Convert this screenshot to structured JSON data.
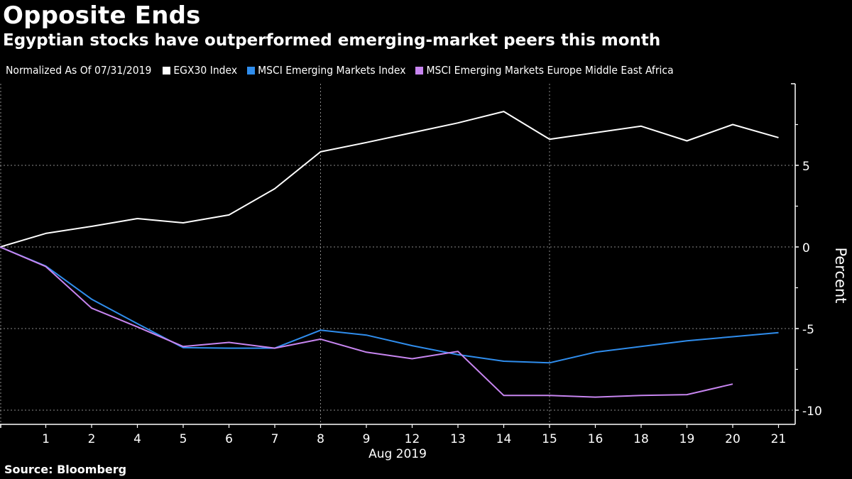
{
  "header": {
    "title": "Opposite Ends",
    "subtitle": "Egyptian stocks have outperformed emerging-market peers this month"
  },
  "legend": {
    "note": "Normalized As Of 07/31/2019",
    "items": [
      {
        "label": "EGX30 Index",
        "color": "#ffffff"
      },
      {
        "label": "MSCI Emerging Markets Index",
        "color": "#2f8ded"
      },
      {
        "label": "MSCI Emerging Markets Europe Middle East Africa",
        "color": "#c785f0"
      }
    ]
  },
  "footer": {
    "source": "Source: Bloomberg"
  },
  "chart_data": {
    "type": "line",
    "title": "Opposite Ends",
    "subtitle": "Egyptian stocks have outperformed emerging-market peers this month",
    "xlabel": "Aug 2019",
    "ylabel": "Percent",
    "x": [
      "Jul 31",
      "1",
      "2",
      "4",
      "5",
      "6",
      "7",
      "8",
      "9",
      "12",
      "13",
      "14",
      "15",
      "16",
      "18",
      "19",
      "20",
      "21"
    ],
    "x_tick_labels": [
      "1",
      "2",
      "4",
      "5",
      "6",
      "7",
      "8",
      "9",
      "12",
      "13",
      "14",
      "15",
      "16",
      "18",
      "19",
      "20",
      "21"
    ],
    "ylim": [
      -10.87,
      10
    ],
    "y_ticks": [
      5,
      0,
      -5,
      -10
    ],
    "y_minor_ticks": [
      7.5,
      2.5,
      -2.5,
      -7.5
    ],
    "y_axis_side": "right",
    "grid": true,
    "vertical_gridlines_at": [
      "Jul 31",
      "8",
      "15"
    ],
    "legend_position": "top-left",
    "series": [
      {
        "name": "EGX30 Index",
        "color": "#ffffff",
        "values": [
          0,
          0.83,
          1.26,
          1.74,
          1.48,
          1.96,
          3.57,
          5.83,
          6.4,
          7.0,
          7.6,
          8.3,
          6.6,
          7.0,
          7.4,
          6.5,
          7.5,
          6.7
        ]
      },
      {
        "name": "MSCI Emerging Markets Index",
        "color": "#2f8ded",
        "values": [
          0,
          -1.17,
          -3.2,
          -4.7,
          -6.17,
          -6.2,
          -6.2,
          -5.1,
          -5.4,
          -6.05,
          -6.6,
          -7.0,
          -7.1,
          -6.45,
          -6.1,
          -5.75,
          -5.5,
          -5.25
        ]
      },
      {
        "name": "MSCI Emerging Markets Europe Middle East Africa",
        "color": "#c785f0",
        "values": [
          0,
          -1.2,
          -3.75,
          -4.9,
          -6.1,
          -5.85,
          -6.2,
          -5.65,
          -6.45,
          -6.85,
          -6.4,
          -9.1,
          -9.1,
          -9.2,
          -9.1,
          -9.05,
          -8.4,
          null
        ]
      }
    ]
  }
}
